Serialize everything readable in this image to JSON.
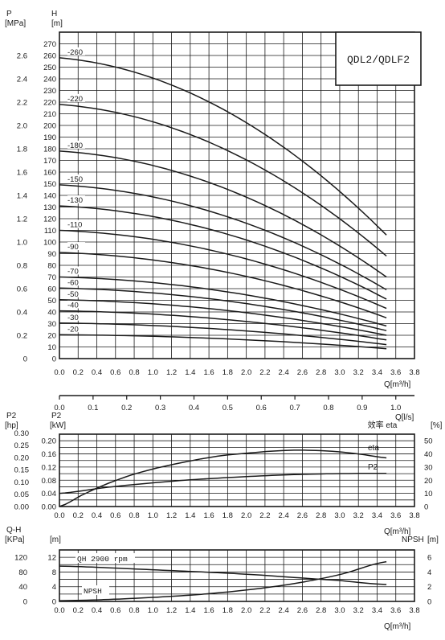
{
  "model_label": "QDL2/QDLF2",
  "chart_data": [
    {
      "type": "line",
      "title": "",
      "x_unit": "Q[m³/h]",
      "x_ticks": [
        "0.0",
        "0.2",
        "0.4",
        "0.6",
        "0.8",
        "1.0",
        "1.2",
        "1.4",
        "1.6",
        "1.8",
        "2.0",
        "2.2",
        "2.4",
        "2.6",
        "2.8",
        "3.0",
        "3.2",
        "3.4",
        "3.6",
        "3.8"
      ],
      "xlim": [
        0,
        3.8
      ],
      "x2_unit": "Q[l/s]",
      "x2_ticks": [
        "0.0",
        "0.1",
        "0.2",
        "0.3",
        "0.4",
        "0.5",
        "0.6",
        "0.7",
        "0.8",
        "0.9",
        "1.0"
      ],
      "y_left_title": "P",
      "y_left_unit": "[MPa]",
      "y_left_ticks": [
        "0",
        "0.2",
        "0.4",
        "0.6",
        "0.8",
        "1.0",
        "1.2",
        "1.4",
        "1.6",
        "1.8",
        "2.0",
        "2.2",
        "2.4",
        "2.6"
      ],
      "y_right_title": "H",
      "y_right_unit": "[m]",
      "y_right_ticks": [
        "0",
        "10",
        "20",
        "30",
        "40",
        "50",
        "60",
        "70",
        "80",
        "90",
        "100",
        "110",
        "120",
        "130",
        "140",
        "150",
        "160",
        "170",
        "180",
        "190",
        "200",
        "210",
        "220",
        "230",
        "240",
        "250",
        "260",
        "270"
      ],
      "ylim": [
        0,
        280
      ],
      "grid": true,
      "series": [
        {
          "name": "-20",
          "x": [
            0,
            3.5
          ],
          "y0": 20.5,
          "y_end": 8.5
        },
        {
          "name": "-30",
          "x": [
            0,
            3.5
          ],
          "y0": 30.5,
          "y_end": 12
        },
        {
          "name": "-40",
          "x": [
            0,
            3.5
          ],
          "y0": 41,
          "y_end": 16
        },
        {
          "name": "-50",
          "x": [
            0,
            3.5
          ],
          "y0": 50.5,
          "y_end": 20
        },
        {
          "name": "-60",
          "x": [
            0,
            3.5
          ],
          "y0": 60.5,
          "y_end": 24
        },
        {
          "name": "-70",
          "x": [
            0,
            3.5
          ],
          "y0": 70,
          "y_end": 28
        },
        {
          "name": "-90",
          "x": [
            0,
            3.5
          ],
          "y0": 91,
          "y_end": 35
        },
        {
          "name": "-110",
          "x": [
            0,
            3.5
          ],
          "y0": 110,
          "y_end": 43
        },
        {
          "name": "-130",
          "x": [
            0,
            3.5
          ],
          "y0": 131,
          "y_end": 51
        },
        {
          "name": "-150",
          "x": [
            0,
            3.5
          ],
          "y0": 149,
          "y_end": 59
        },
        {
          "name": "-180",
          "x": [
            0,
            3.5
          ],
          "y0": 178,
          "y_end": 70
        },
        {
          "name": "-220",
          "x": [
            0,
            3.5
          ],
          "y0": 218,
          "y_end": 88
        },
        {
          "name": "-260",
          "x": [
            0,
            3.5
          ],
          "y0": 258,
          "y_end": 106
        }
      ]
    },
    {
      "type": "line",
      "title": "",
      "x_unit": "Q[m³/h]",
      "x_ticks": [
        "0.0",
        "0.2",
        "0.4",
        "0.6",
        "0.8",
        "1.0",
        "1.2",
        "1.4",
        "1.6",
        "1.8",
        "2.0",
        "2.2",
        "2.4",
        "2.6",
        "2.8",
        "3.0",
        "3.2",
        "3.4",
        "3.6",
        "3.8"
      ],
      "xlim": [
        0,
        3.8
      ],
      "y_hp_title": "P2",
      "y_hp_unit": "[hp]",
      "y_hp_ticks": [
        "0.00",
        "0.05",
        "0.10",
        "0.15",
        "0.20",
        "0.25",
        "0.30"
      ],
      "y_kw_title": "P2",
      "y_kw_unit": "[kW]",
      "y_kw_ticks": [
        "0.00",
        "0.04",
        "0.08",
        "0.12",
        "0.16",
        "0.20"
      ],
      "ylim_kw": [
        0,
        0.22
      ],
      "y_eta_title": "效率 eta",
      "y_eta_unit": "[%]",
      "y_eta_ticks": [
        "0",
        "10",
        "20",
        "30",
        "40",
        "50"
      ],
      "ylim_eta": [
        0,
        55
      ],
      "grid": true,
      "series": [
        {
          "name": "eta",
          "axis": "eta",
          "x": [
            0,
            0.25,
            0.5,
            0.75,
            1.0,
            1.25,
            1.5,
            1.75,
            2.0,
            2.25,
            2.5,
            2.75,
            3.0,
            3.25,
            3.5
          ],
          "y": [
            0,
            9,
            17,
            23.5,
            28.5,
            32.5,
            36,
            38.8,
            40.5,
            42,
            42.8,
            42.6,
            41.5,
            39.5,
            37
          ]
        },
        {
          "name": "P2",
          "axis": "kw",
          "x": [
            0,
            0.5,
            1.0,
            1.5,
            2.0,
            2.5,
            3.0,
            3.5
          ],
          "y": [
            0.04,
            0.058,
            0.072,
            0.083,
            0.091,
            0.097,
            0.1,
            0.101
          ]
        }
      ]
    },
    {
      "type": "line",
      "title": "",
      "x_unit": "Q[m³/h]",
      "x_ticks": [
        "0.0",
        "0.2",
        "0.4",
        "0.6",
        "0.8",
        "1.0",
        "1.2",
        "1.4",
        "1.6",
        "1.8",
        "2.0",
        "2.2",
        "2.4",
        "2.6",
        "2.8",
        "3.0",
        "3.2",
        "3.4",
        "3.6",
        "3.8"
      ],
      "xlim": [
        0,
        3.8
      ],
      "y_kpa_title": "Q-H",
      "y_kpa_unit": "[KPa]",
      "y_kpa_ticks": [
        "0",
        "40",
        "80",
        "120"
      ],
      "y_m_unit": "[m]",
      "y_m_ticks": [
        "0",
        "4",
        "8",
        "12"
      ],
      "ylim_m": [
        0,
        14
      ],
      "y_npsh_title": "NPSH",
      "y_npsh_unit": "[m]",
      "y_npsh_ticks": [
        "0",
        "2",
        "4",
        "6"
      ],
      "grid": true,
      "series": [
        {
          "name": "QH 2900 rpm",
          "axis": "m",
          "x": [
            0,
            1.0,
            2.0,
            3.0,
            3.5
          ],
          "y": [
            9.6,
            8.6,
            7.4,
            5.7,
            4.6
          ]
        },
        {
          "name": "NPSH",
          "axis": "m",
          "x": [
            0,
            0.5,
            1.0,
            1.5,
            2.0,
            2.5,
            3.0,
            3.5
          ],
          "y": [
            0.2,
            0.5,
            1.1,
            1.9,
            3.1,
            4.8,
            7.3,
            10.8
          ]
        }
      ]
    }
  ]
}
